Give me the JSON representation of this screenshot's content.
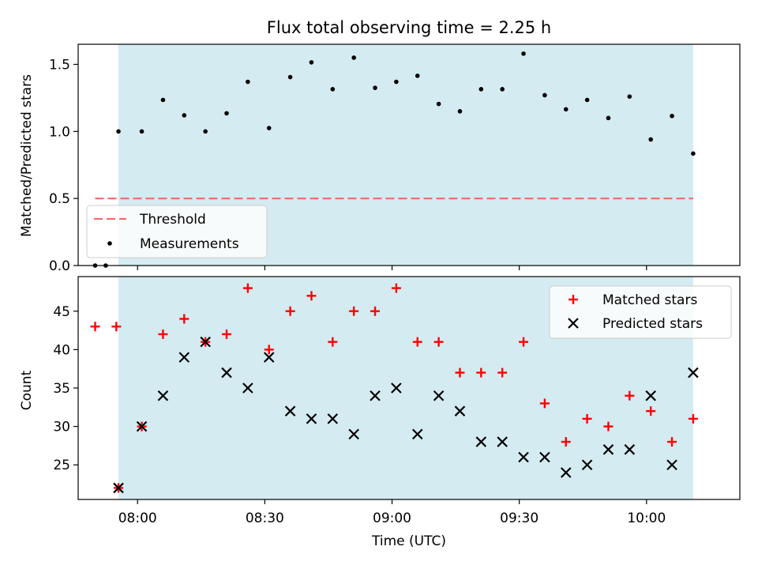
{
  "chart_data": [
    {
      "type": "scatter",
      "title": "Flux total observing time = 2.25 h",
      "xlabel": "",
      "ylabel": "Matched/Predicted stars",
      "xlim": [
        466,
        622
      ],
      "ylim": [
        0,
        1.65
      ],
      "yticks": [
        0.0,
        0.5,
        1.0,
        1.5
      ],
      "ytick_labels": [
        "0.0",
        "0.5",
        "1.0",
        "1.5"
      ],
      "shaded_region": {
        "x_start": 475.5,
        "x_end": 611,
        "color": "#d4ebf1"
      },
      "threshold": {
        "name": "Threshold",
        "value": 0.5,
        "x_start": 470,
        "x_end": 611,
        "color": "#f26b6b"
      },
      "legend": {
        "location": "lower-left",
        "entries": [
          "Threshold",
          "Measurements"
        ]
      },
      "series": [
        {
          "name": "Measurements",
          "x": [
            470,
            472.5,
            475.5,
            481,
            486,
            491,
            496,
            501,
            506,
            511,
            516,
            521,
            526,
            531,
            536,
            541,
            546,
            551,
            556,
            561,
            566,
            571,
            576,
            581,
            586,
            591,
            596,
            601,
            606,
            611
          ],
          "y": [
            0,
            0,
            1.0,
            1.0,
            1.235,
            1.12,
            1.0,
            1.135,
            1.37,
            1.025,
            1.405,
            1.515,
            1.315,
            1.55,
            1.325,
            1.37,
            1.415,
            1.205,
            1.15,
            1.315,
            1.315,
            1.58,
            1.27,
            1.165,
            1.235,
            1.1,
            1.26,
            0.94,
            1.115,
            0.835
          ]
        }
      ]
    },
    {
      "type": "scatter",
      "xlabel": "Time (UTC)",
      "ylabel": "Count",
      "xlim": [
        466,
        622
      ],
      "ylim": [
        20.5,
        49.5
      ],
      "xticks": [
        480,
        510,
        540,
        570,
        600
      ],
      "xtick_labels": [
        "08:00",
        "08:30",
        "09:00",
        "09:30",
        "10:00"
      ],
      "yticks": [
        25,
        30,
        35,
        40,
        45
      ],
      "ytick_labels": [
        "25",
        "30",
        "35",
        "40",
        "45"
      ],
      "shaded_region": {
        "x_start": 475.5,
        "x_end": 611,
        "color": "#d4ebf1"
      },
      "legend": {
        "location": "top-right",
        "entries": [
          "Matched stars",
          "Predicted stars"
        ]
      },
      "series": [
        {
          "name": "Matched stars",
          "marker": "plus",
          "color": "#ff0000",
          "x": [
            470,
            475,
            475.5,
            481,
            486,
            491,
            496,
            501,
            506,
            511,
            516,
            521,
            526,
            531,
            536,
            541,
            546,
            551,
            556,
            561,
            566,
            571,
            576,
            581,
            586,
            591,
            596,
            601,
            606,
            611
          ],
          "y": [
            43,
            43,
            22,
            30,
            42,
            44,
            41,
            42,
            48,
            40,
            45,
            47,
            41,
            45,
            45,
            48,
            41,
            41,
            37,
            37,
            37,
            41,
            33,
            28,
            31,
            30,
            34,
            32,
            28,
            31
          ]
        },
        {
          "name": "Predicted stars",
          "marker": "x",
          "color": "#000000",
          "x": [
            475.5,
            481,
            486,
            491,
            496,
            501,
            506,
            511,
            516,
            521,
            526,
            531,
            536,
            541,
            546,
            551,
            556,
            561,
            566,
            571,
            576,
            581,
            586,
            591,
            596,
            601,
            606,
            611
          ],
          "y": [
            22,
            30,
            34,
            39,
            41,
            37,
            35,
            39,
            32,
            31,
            31,
            29,
            34,
            35,
            29,
            34,
            32,
            28,
            28,
            26,
            26,
            24,
            25,
            27,
            27,
            34,
            25,
            37
          ]
        }
      ]
    }
  ]
}
